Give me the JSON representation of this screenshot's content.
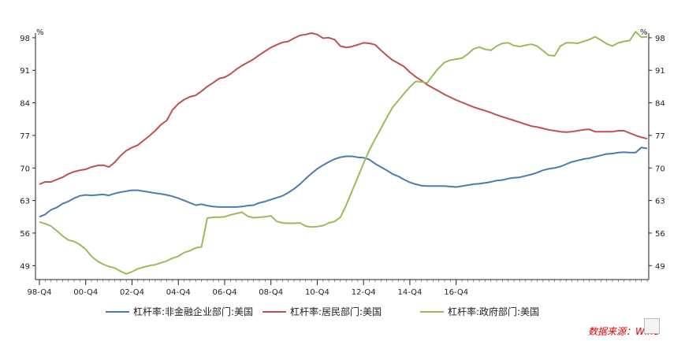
{
  "chart_data": {
    "type": "line",
    "x_tick_labels": [
      "98-Q4",
      "00-Q4",
      "02-Q4",
      "04-Q4",
      "06-Q4",
      "08-Q4",
      "10-Q4",
      "12-Q4",
      "14-Q4",
      "16-Q4"
    ],
    "y_unit_left": "%",
    "y_unit_right": "%",
    "y_ticks": [
      49,
      56,
      63,
      70,
      77,
      84,
      91,
      98
    ],
    "ylim": [
      46,
      99
    ],
    "x_start_quarter": "98-Q4",
    "series": [
      {
        "name": "杠杆率:非金融企业部门:美国",
        "color": "#4a7ab5",
        "values": [
          59.5,
          60,
          61,
          61.5,
          62.3,
          62.8,
          63.5,
          64,
          64.2,
          64.1,
          64.2,
          64.3,
          64.1,
          64.5,
          64.8,
          65,
          65.2,
          65.2,
          65,
          64.8,
          64.6,
          64.4,
          64.2,
          63.9,
          63.5,
          63,
          62.5,
          62,
          62.2,
          61.9,
          61.7,
          61.6,
          61.6,
          61.6,
          61.6,
          61.7,
          61.9,
          62,
          62.5,
          62.8,
          63.2,
          63.6,
          64,
          64.7,
          65.5,
          66.5,
          67.7,
          68.8,
          69.8,
          70.6,
          71.3,
          71.9,
          72.3,
          72.5,
          72.5,
          72.3,
          72.2,
          71.8,
          70.9,
          70.2,
          69.5,
          68.7,
          68.2,
          67.5,
          66.9,
          66.5,
          66.2,
          66.1,
          66.1,
          66.1,
          66.1,
          66,
          65.9,
          66.1,
          66.3,
          66.5,
          66.6,
          66.8,
          67,
          67.3,
          67.4,
          67.7,
          67.9,
          68,
          68.3,
          68.6,
          69,
          69.5,
          69.8,
          70,
          70.3,
          70.8,
          71.3,
          71.6,
          71.9,
          72.1,
          72.4,
          72.7,
          73,
          73.1,
          73.3,
          73.4,
          73.3,
          73.3,
          74.4,
          74.2
        ]
      },
      {
        "name": "杠杆率:居民部门:美国",
        "color": "#c0504d",
        "values": [
          66.5,
          67,
          67,
          67.5,
          68,
          68.7,
          69.2,
          69.5,
          69.7,
          70.2,
          70.5,
          70.6,
          70.2,
          71.2,
          72.6,
          73.7,
          74.4,
          74.9,
          75.9,
          76.9,
          78,
          79.3,
          80.2,
          82.5,
          83.8,
          84.7,
          85.3,
          85.6,
          86.5,
          87.5,
          88.3,
          89.2,
          89.5,
          90.2,
          91.2,
          92,
          92.7,
          93.4,
          94.3,
          95.1,
          95.9,
          96.5,
          97,
          97.2,
          97.9,
          98.5,
          98.7,
          99,
          98.7,
          97.9,
          98,
          97.6,
          96.2,
          95.9,
          96.1,
          96.5,
          96.9,
          96.8,
          96.5,
          95.3,
          94.2,
          93.2,
          92.5,
          91.8,
          90.6,
          89.6,
          88.8,
          87.9,
          87.2,
          86.5,
          85.8,
          85.2,
          84.6,
          84.1,
          83.6,
          83.1,
          82.7,
          82.3,
          81.9,
          81.4,
          81,
          80.6,
          80.2,
          79.8,
          79.4,
          79,
          78.8,
          78.5,
          78.2,
          78,
          77.8,
          77.7,
          77.8,
          78,
          78.2,
          78.3,
          77.8,
          77.8,
          77.8,
          77.8,
          78,
          78,
          77.5,
          77,
          76.6,
          76.3
        ]
      },
      {
        "name": "杠杆率:政府部门:美国",
        "color": "#9bbb59",
        "values": [
          58.4,
          58,
          57.5,
          56.5,
          55.4,
          54.5,
          54.2,
          53.5,
          52.5,
          51,
          50,
          49.3,
          48.8,
          48.5,
          47.8,
          47.2,
          47.7,
          48.3,
          48.7,
          49,
          49.2,
          49.6,
          50,
          50.6,
          51,
          51.8,
          52.2,
          52.8,
          53,
          59.2,
          59.4,
          59.4,
          59.5,
          59.9,
          60.2,
          60.5,
          59.6,
          59.3,
          59.4,
          59.5,
          59.7,
          58.5,
          58.2,
          58.1,
          58.1,
          58.2,
          57.5,
          57.3,
          57.4,
          57.6,
          58.2,
          58.5,
          59.4,
          62,
          65,
          68,
          71,
          73.8,
          76.2,
          78.5,
          80.8,
          83,
          84.5,
          86,
          87.4,
          88.6,
          88.5,
          88.3,
          90,
          91.5,
          92.7,
          93.2,
          93.4,
          93.6,
          94.5,
          95.6,
          96,
          95.5,
          95.3,
          96.2,
          96.8,
          96.9,
          96.3,
          96.1,
          96.4,
          96.6,
          96.2,
          95.2,
          94.2,
          94.1,
          96.2,
          96.9,
          96.9,
          96.8,
          97.2,
          97.6,
          98.2,
          97.5,
          96.7,
          96.2,
          96.9,
          97.2,
          97.4,
          99.3,
          98.1,
          98.2
        ]
      }
    ]
  },
  "source_note": "数据来源：Wind"
}
